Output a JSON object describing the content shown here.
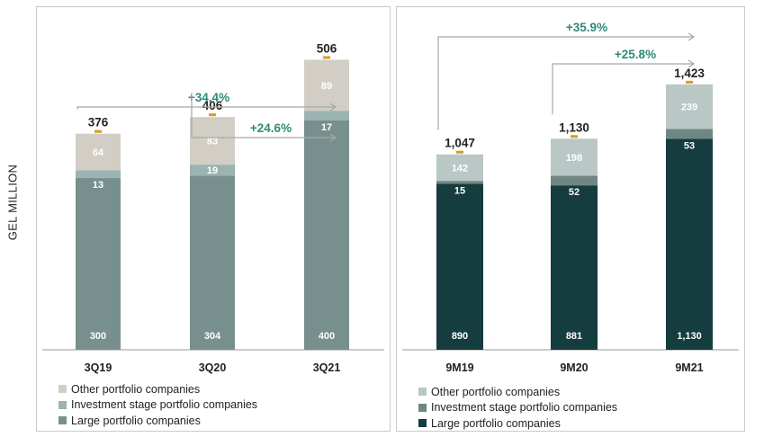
{
  "y_axis_label": "GEL MILLION",
  "colors": {
    "other_q": "#d2cec5",
    "investment_q": "#9bb3b1",
    "large_q": "#77908e",
    "other_9m": "#b9c7c5",
    "investment_9m": "#6f8684",
    "large_9m": "#153c3e",
    "growth_text": "#2e8a78",
    "arrow": "#a8a8a8",
    "total_marker": "#d99a1f"
  },
  "chart_data": [
    {
      "type": "bar",
      "stacked": true,
      "categories": [
        "3Q19",
        "3Q20",
        "3Q21"
      ],
      "series": [
        {
          "name": "Large portfolio companies",
          "values": [
            300,
            304,
            400
          ]
        },
        {
          "name": "Investment stage portfolio companies",
          "values": [
            13,
            19,
            17
          ]
        },
        {
          "name": "Other portfolio companies",
          "values": [
            64,
            83,
            89
          ]
        }
      ],
      "totals": [
        "376",
        "406",
        "506"
      ],
      "growth": [
        {
          "label": "+34.4%",
          "from": 0,
          "to": 2
        },
        {
          "label": "+24.6%",
          "from": 1,
          "to": 2
        }
      ],
      "legend": [
        "Other portfolio companies",
        "Investment stage portfolio companies",
        "Large portfolio companies"
      ],
      "ylabel": "GEL MILLION",
      "ylim": [
        0,
        560
      ]
    },
    {
      "type": "bar",
      "stacked": true,
      "categories": [
        "9M19",
        "9M20",
        "9M21"
      ],
      "series": [
        {
          "name": "Large portfolio companies",
          "values": [
            890,
            881,
            1130
          ]
        },
        {
          "name": "Investment stage portfolio companies",
          "values": [
            15,
            52,
            53
          ]
        },
        {
          "name": "Other portfolio companies",
          "values": [
            142,
            198,
            239
          ]
        }
      ],
      "value_labels": [
        [
          "890",
          "881",
          "1,130"
        ],
        [
          "15",
          "52",
          "53"
        ],
        [
          "142",
          "198",
          "239"
        ]
      ],
      "totals": [
        "1,047",
        "1,130",
        "1,423"
      ],
      "growth": [
        {
          "label": "+35.9%",
          "from": 0,
          "to": 2
        },
        {
          "label": "+25.8%",
          "from": 1,
          "to": 2
        }
      ],
      "legend": [
        "Other portfolio companies",
        "Investment stage portfolio companies",
        "Large portfolio companies"
      ],
      "ylim": [
        0,
        1720
      ]
    }
  ]
}
